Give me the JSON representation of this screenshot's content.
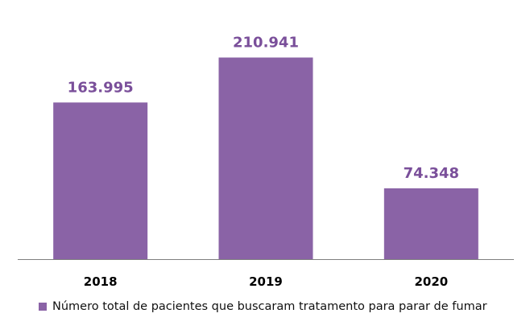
{
  "chart_data": {
    "type": "bar",
    "categories": [
      "2018",
      "2019",
      "2020"
    ],
    "series": [
      {
        "name": "Número total de pacientes que buscaram tratamento para parar de fumar",
        "values": [
          163995,
          210941,
          74348
        ],
        "labels": [
          "163.995",
          "210.941",
          "74.348"
        ]
      }
    ],
    "ylim": [
      0,
      250000
    ],
    "grid": false,
    "legend_position": "bottom",
    "bar_color": "#8a63a6",
    "label_color": "#7a4f9a"
  }
}
